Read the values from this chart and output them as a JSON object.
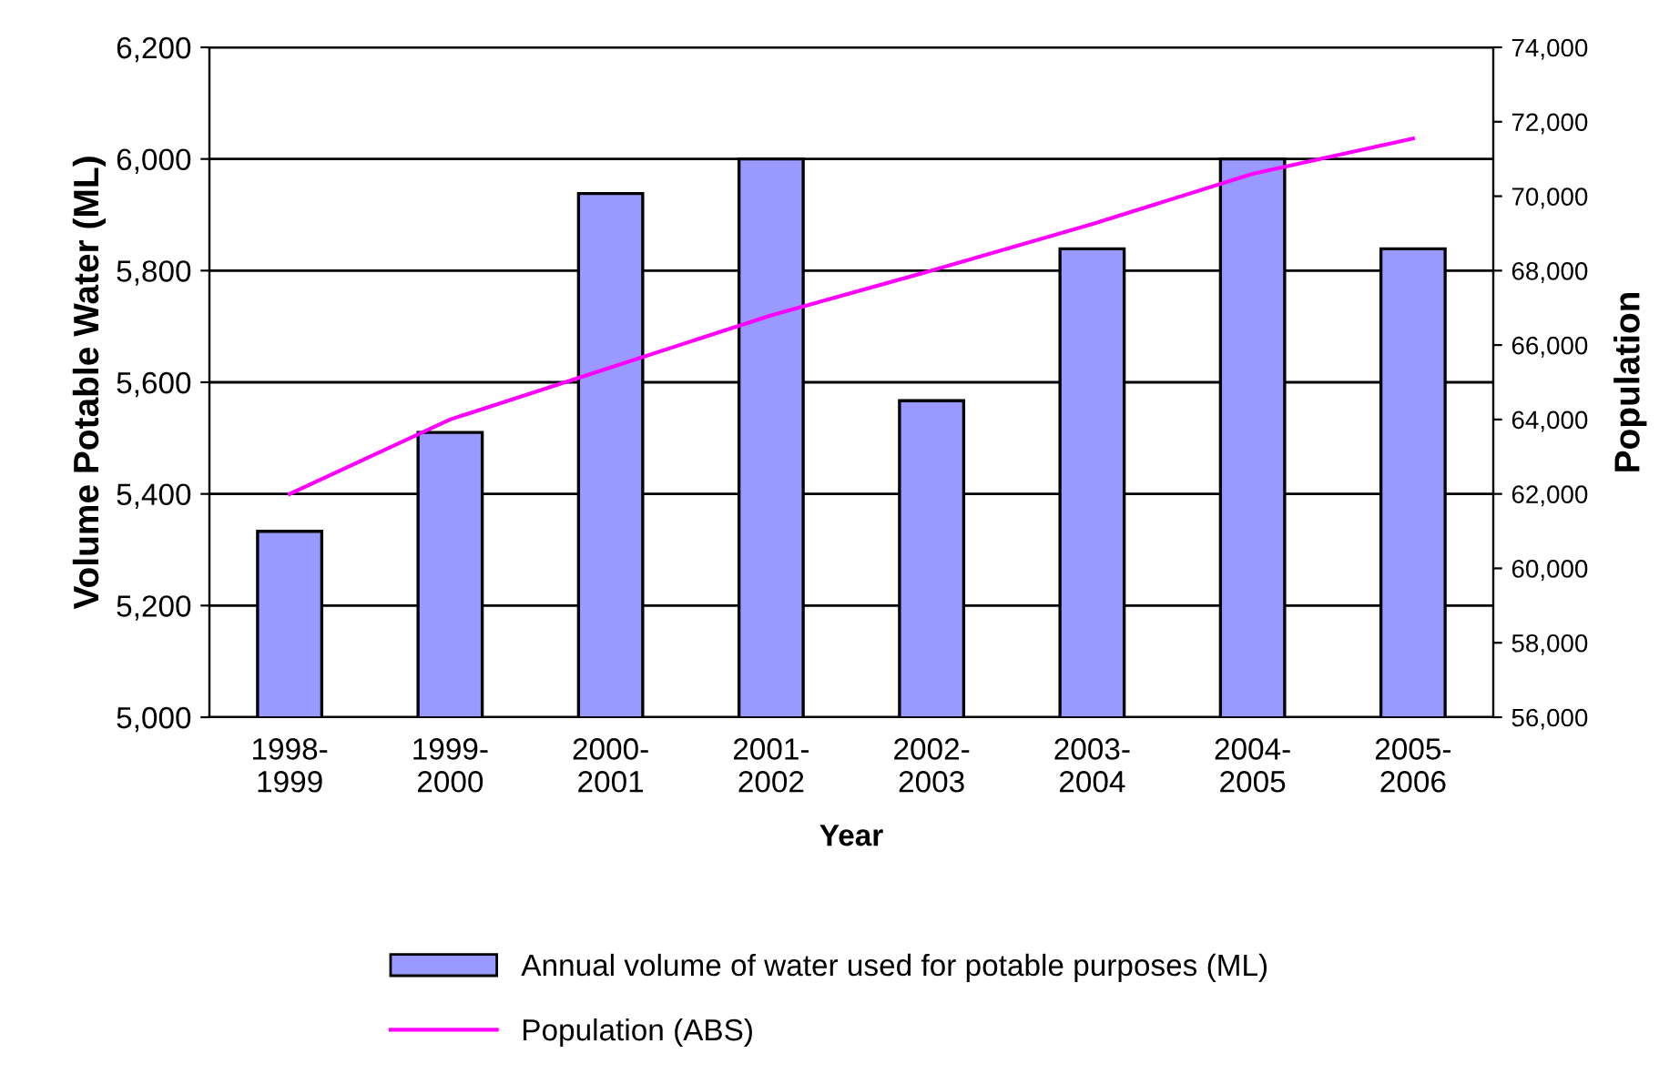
{
  "chart_data": {
    "type": "bar",
    "xlabel": "Year",
    "ylabel": "Volume Potable Water (ML)",
    "y2label": "Population",
    "categories": [
      "1998-\n1999",
      "1999-\n2000",
      "2000-\n2001",
      "2001-\n2002",
      "2002-\n2003",
      "2003-\n2004",
      "2004-\n2005",
      "2005-\n2006"
    ],
    "series": [
      {
        "name": "Annual volume of water used for potable purposes (ML)",
        "color": "#9999ff",
        "values": [
          5333,
          5510,
          5938,
          6000,
          5567,
          5839,
          6000,
          5839
        ]
      },
      {
        "name": "Population (ABS)",
        "type": "line",
        "axis": "y2",
        "color": "#ff00ff",
        "values": [
          62000,
          64000,
          65400,
          66800,
          68000,
          69250,
          70600,
          71550
        ]
      }
    ],
    "ylim": [
      5000,
      6200
    ],
    "yticks": [
      {
        "value": 5000,
        "label": "5,000"
      },
      {
        "value": 5200,
        "label": "5,200"
      },
      {
        "value": 5400,
        "label": "5,400"
      },
      {
        "value": 5600,
        "label": "5,600"
      },
      {
        "value": 5800,
        "label": "5,800"
      },
      {
        "value": 6000,
        "label": "6,000"
      },
      {
        "value": 6200,
        "label": "6,200"
      }
    ],
    "y2lim": [
      56000,
      74000
    ],
    "y2ticks": [
      {
        "value": 56000,
        "label": "56,000"
      },
      {
        "value": 58000,
        "label": "58,000"
      },
      {
        "value": 60000,
        "label": "60,000"
      },
      {
        "value": 62000,
        "label": "62,000"
      },
      {
        "value": 64000,
        "label": "64,000"
      },
      {
        "value": 66000,
        "label": "66,000"
      },
      {
        "value": 68000,
        "label": "68,000"
      },
      {
        "value": 70000,
        "label": "70,000"
      },
      {
        "value": 72000,
        "label": "72,000"
      },
      {
        "value": 74000,
        "label": "74,000"
      }
    ],
    "grid": "y",
    "legend": "bottom"
  }
}
